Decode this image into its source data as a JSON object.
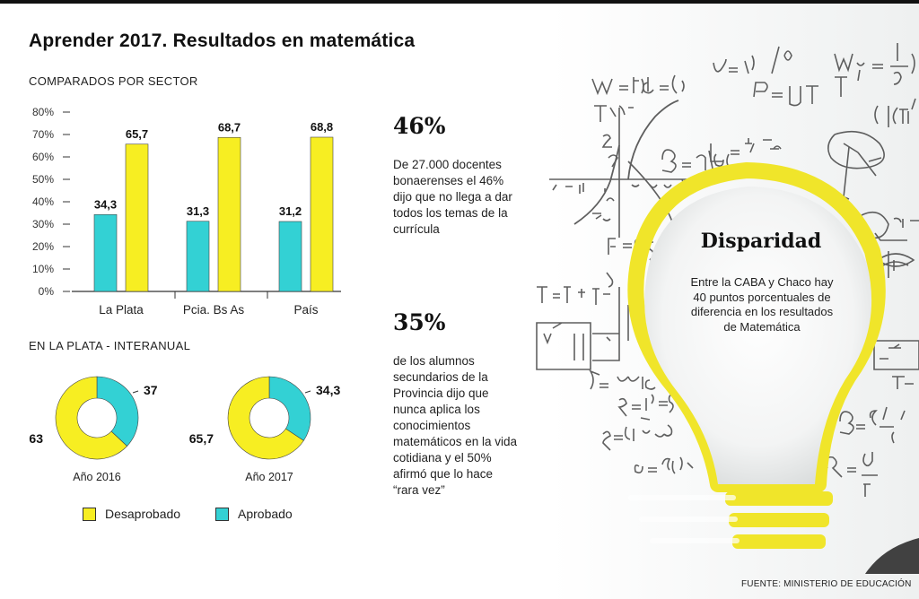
{
  "title": "Aprender 2017. Resultados en matemática",
  "bar_section_label": "COMPARADOS POR SECTOR",
  "donut_section_label": "EN LA PLATA - INTERANUAL",
  "stats": [
    {
      "value": "46%",
      "text": "De 27.000 docentes bonaerenses el 46% dijo que no llega a dar todos los temas de la currícula"
    },
    {
      "value": "35%",
      "text": "de los alumnos secundarios de la Provincia dijo que nunca aplica los conocimientos matemáticos en la vida cotidiana y el 50% afirmó que lo hace “rara vez”"
    }
  ],
  "bulb": {
    "title": "Disparidad",
    "text": "Entre la CABA y Chaco hay 40 puntos porcentuales de diferencia en los resultados de Matemática"
  },
  "legend": [
    {
      "label": "Desaprobado",
      "color": "#f7ee22"
    },
    {
      "label": "Aprobado",
      "color": "#33d1d4"
    }
  ],
  "source": "FUENTE: MINISTERIO DE EDUCACIÓN",
  "colors": {
    "aprobado": "#33d1d4",
    "desaprobado": "#f7ee22",
    "accent": "#e8e22a"
  },
  "chart_data": [
    {
      "type": "bar",
      "categories": [
        "La Plata",
        "Pcia. Bs As",
        "País"
      ],
      "series": [
        {
          "name": "Aprobado",
          "values": [
            34.3,
            31.3,
            31.2
          ],
          "labels": [
            "34,3",
            "31,3",
            "31,2"
          ]
        },
        {
          "name": "Desaprobado",
          "values": [
            65.7,
            68.7,
            68.8
          ],
          "labels": [
            "65,7",
            "68,7",
            "68,8"
          ]
        }
      ],
      "ylim": [
        0,
        80
      ],
      "yticks": [
        "0%",
        "10%",
        "20%",
        "30%",
        "40%",
        "50%",
        "60%",
        "70%",
        "80%"
      ]
    },
    {
      "type": "pie",
      "title": "Año 2016",
      "slices": [
        {
          "name": "Desaprobado",
          "value": 63,
          "label": "63"
        },
        {
          "name": "Aprobado",
          "value": 37,
          "label": "37"
        }
      ]
    },
    {
      "type": "pie",
      "title": "Año 2017",
      "slices": [
        {
          "name": "Desaprobado",
          "value": 65.7,
          "label": "65,7"
        },
        {
          "name": "Aprobado",
          "value": 34.3,
          "label": "34,3"
        }
      ]
    }
  ]
}
